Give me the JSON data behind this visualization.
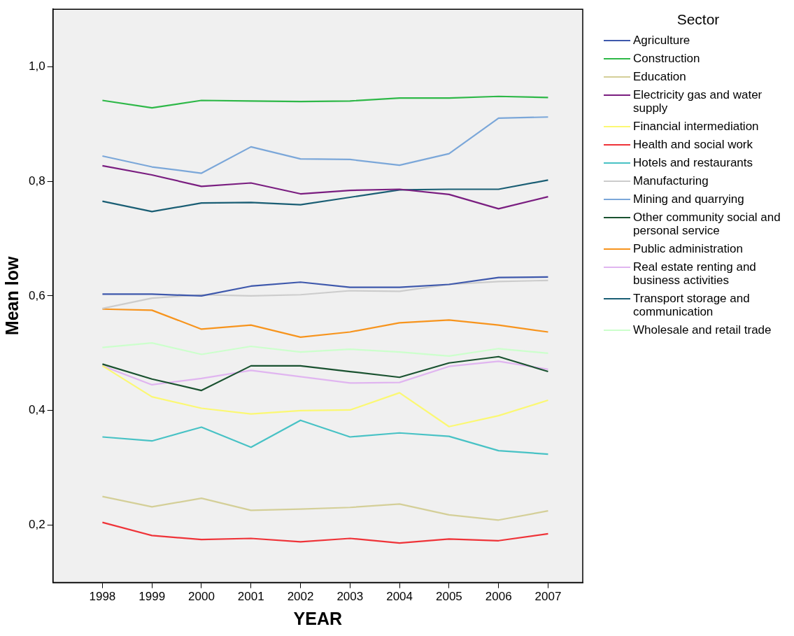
{
  "chart_data": {
    "type": "line",
    "xlabel": "YEAR",
    "ylabel": "Mean low",
    "legend_title": "Sector",
    "legend": "right",
    "grid": false,
    "marker": "none",
    "line_style": "solid",
    "x": [
      1998,
      1999,
      2000,
      2001,
      2002,
      2003,
      2004,
      2005,
      2006,
      2007
    ],
    "xlim": [
      1997,
      2007.7
    ],
    "xticks": [
      1998,
      1999,
      2000,
      2001,
      2002,
      2003,
      2004,
      2005,
      2006,
      2007
    ],
    "ylim": [
      0.1,
      1.1
    ],
    "yticks": [
      {
        "value": 0.2,
        "label": "0,2"
      },
      {
        "value": 0.4,
        "label": "0,4"
      },
      {
        "value": 0.6,
        "label": "0,6"
      },
      {
        "value": 0.8,
        "label": "0,8"
      },
      {
        "value": 1.0,
        "label": "1,0"
      }
    ],
    "series": [
      {
        "name": "Agriculture",
        "color": "#3e58ac",
        "values": [
          0.603,
          0.603,
          0.6,
          0.617,
          0.624,
          0.615,
          0.615,
          0.62,
          0.632,
          0.633
        ]
      },
      {
        "name": "Construction",
        "color": "#2eb848",
        "values": [
          0.941,
          0.928,
          0.941,
          0.94,
          0.939,
          0.94,
          0.945,
          0.945,
          0.948,
          0.946
        ]
      },
      {
        "name": "Education",
        "color": "#d4cf98",
        "values": [
          0.25,
          0.232,
          0.247,
          0.226,
          0.228,
          0.231,
          0.237,
          0.218,
          0.209,
          0.225
        ]
      },
      {
        "name": "Electricity gas and water supply",
        "color": "#7a1e80",
        "values": [
          0.827,
          0.811,
          0.791,
          0.797,
          0.778,
          0.784,
          0.786,
          0.777,
          0.752,
          0.773
        ]
      },
      {
        "name": "Financial intermediation",
        "color": "#fbf873",
        "values": [
          0.478,
          0.424,
          0.404,
          0.394,
          0.4,
          0.401,
          0.431,
          0.372,
          0.391,
          0.418
        ]
      },
      {
        "name": "Health and social work",
        "color": "#ef3338",
        "values": [
          0.205,
          0.182,
          0.175,
          0.177,
          0.171,
          0.177,
          0.169,
          0.176,
          0.173,
          0.185
        ]
      },
      {
        "name": "Hotels and restaurants",
        "color": "#48c2c5",
        "values": [
          0.354,
          0.347,
          0.371,
          0.336,
          0.383,
          0.354,
          0.361,
          0.355,
          0.33,
          0.324
        ]
      },
      {
        "name": "Manufacturing",
        "color": "#cccccc",
        "values": [
          0.578,
          0.596,
          0.602,
          0.6,
          0.602,
          0.609,
          0.608,
          0.62,
          0.625,
          0.627
        ]
      },
      {
        "name": "Mining and quarrying",
        "color": "#7ba7d9",
        "values": [
          0.844,
          0.825,
          0.814,
          0.86,
          0.839,
          0.838,
          0.828,
          0.848,
          0.91,
          0.912
        ]
      },
      {
        "name": "Other community social and personal service",
        "color": "#1a5230",
        "values": [
          0.481,
          0.455,
          0.435,
          0.478,
          0.478,
          0.468,
          0.458,
          0.483,
          0.494,
          0.468
        ]
      },
      {
        "name": "Public administration",
        "color": "#f7941d",
        "values": [
          0.577,
          0.575,
          0.542,
          0.549,
          0.528,
          0.537,
          0.553,
          0.558,
          0.549,
          0.537
        ]
      },
      {
        "name": "Real estate renting and business activities",
        "color": "#e0b5f0",
        "values": [
          0.478,
          0.445,
          0.456,
          0.47,
          0.459,
          0.448,
          0.449,
          0.477,
          0.486,
          0.472
        ]
      },
      {
        "name": "Transport storage and communication",
        "color": "#1a5e74",
        "values": [
          0.765,
          0.747,
          0.762,
          0.763,
          0.759,
          0.772,
          0.785,
          0.786,
          0.786,
          0.802
        ]
      },
      {
        "name": "Wholesale and retail trade",
        "color": "#ccffcc",
        "values": [
          0.51,
          0.518,
          0.498,
          0.512,
          0.502,
          0.507,
          0.502,
          0.495,
          0.508,
          0.5
        ]
      }
    ]
  }
}
